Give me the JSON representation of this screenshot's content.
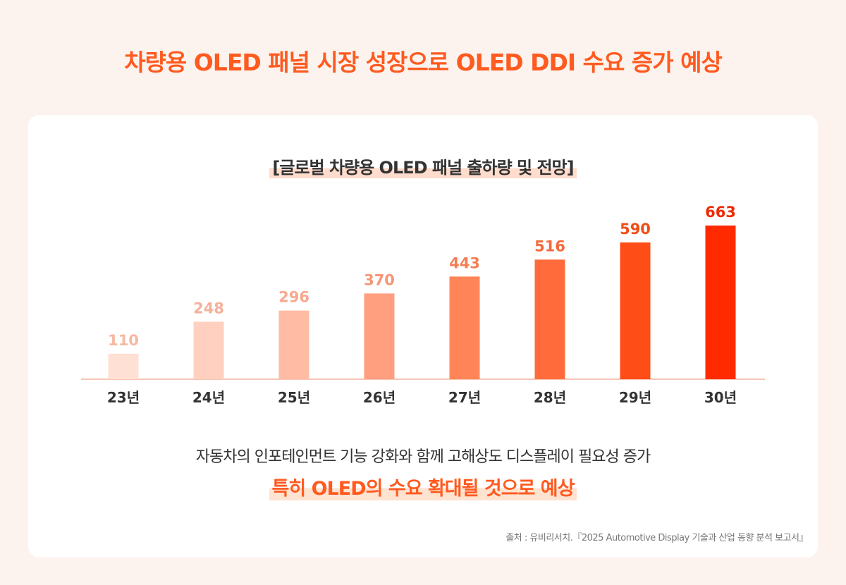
{
  "header": {
    "title": "차량용 OLED 패널 시장 성장으로 OLED DDI 수요 증가 예상"
  },
  "card": {
    "message_line1": "자동차의 인포테인먼트 기능 강화와 함께 고해상도 디스플레이 필요성 증가",
    "message_line2": "특히 OLED의 수요 확대될 것으로 예상",
    "source": "출처 : 유비리서치.『2025 Automotive Display 기술과 산업 동향 분석 보고서』"
  },
  "chart_data": {
    "type": "bar",
    "title": "[글로벌 차량용 OLED 패널 출하량 및 전망]",
    "categories": [
      "23년",
      "24년",
      "25년",
      "26년",
      "27년",
      "28년",
      "29년",
      "30년"
    ],
    "values": [
      110,
      248,
      296,
      370,
      443,
      516,
      590,
      663
    ],
    "xlabel": "",
    "ylabel": "",
    "ylim": [
      0,
      663
    ],
    "grid": false,
    "legend": "none",
    "colors": [
      "#ffe0d4",
      "#ffd0c0",
      "#ffbba3",
      "#ff9f80",
      "#ff8559",
      "#ff6b3a",
      "#ff4d17",
      "#ff2a00"
    ],
    "label_colors": [
      "#f5b9a3",
      "#f5b09a",
      "#f7a98e",
      "#f59676",
      "#f47f55",
      "#f26a3b",
      "#f04d18",
      "#ee2a00"
    ]
  }
}
